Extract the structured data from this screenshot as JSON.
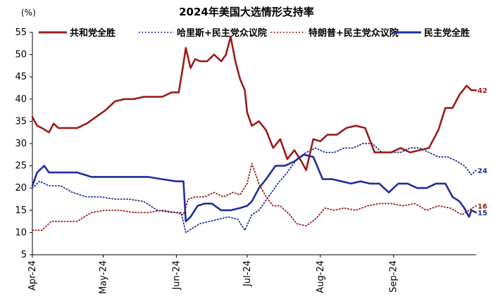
{
  "chart_data": {
    "type": "line",
    "title": "2024年美国大选情形支持率",
    "unit_label": "(%)",
    "ylim": [
      5,
      55
    ],
    "y_ticks": [
      5,
      10,
      15,
      20,
      25,
      30,
      35,
      40,
      45,
      50,
      55
    ],
    "x_ticks": [
      "Apr-24",
      "May-24",
      "Jun-24",
      "Jul-24",
      "Aug-24",
      "Sep-24"
    ],
    "grid": false,
    "legend_position": "top",
    "colors": {
      "republican": "#9b1b1b",
      "harris": "#1f2f9c",
      "trump": "#9b1b1b",
      "democrat": "#1f2f9c"
    },
    "series": [
      {
        "name": "共和党全胜",
        "style": "solid",
        "color": "#9b1b1b",
        "end_label": "42",
        "x": [
          "2024-04-01",
          "2024-04-03",
          "2024-04-05",
          "2024-04-08",
          "2024-04-10",
          "2024-04-12",
          "2024-04-16",
          "2024-04-20",
          "2024-04-24",
          "2024-04-28",
          "2024-05-02",
          "2024-05-06",
          "2024-05-10",
          "2024-05-14",
          "2024-05-18",
          "2024-05-22",
          "2024-05-26",
          "2024-05-30",
          "2024-06-02",
          "2024-06-04",
          "2024-06-05",
          "2024-06-07",
          "2024-06-09",
          "2024-06-11",
          "2024-06-14",
          "2024-06-17",
          "2024-06-20",
          "2024-06-22",
          "2024-06-24",
          "2024-06-26",
          "2024-06-28",
          "2024-06-30",
          "2024-07-01",
          "2024-07-03",
          "2024-07-06",
          "2024-07-09",
          "2024-07-12",
          "2024-07-15",
          "2024-07-18",
          "2024-07-21",
          "2024-07-24",
          "2024-07-26",
          "2024-07-29",
          "2024-08-01",
          "2024-08-04",
          "2024-08-08",
          "2024-08-12",
          "2024-08-16",
          "2024-08-20",
          "2024-08-24",
          "2024-08-28",
          "2024-08-31",
          "2024-09-04",
          "2024-09-08",
          "2024-09-12",
          "2024-09-16",
          "2024-09-20",
          "2024-09-23",
          "2024-09-26",
          "2024-09-29",
          "2024-10-02",
          "2024-10-04",
          "2024-10-06"
        ],
        "y": [
          36,
          34,
          33.5,
          32.5,
          34.5,
          33.5,
          33.5,
          33.5,
          34.5,
          36,
          37.5,
          39.5,
          40,
          40,
          40.5,
          40.5,
          40.5,
          41.5,
          41.5,
          48,
          51.5,
          47,
          49,
          48.5,
          48.5,
          50,
          48.5,
          50,
          54,
          48.5,
          44.5,
          42,
          37,
          34,
          35,
          33,
          29,
          31,
          26.5,
          28.5,
          26,
          24,
          31,
          30.5,
          32,
          32,
          33.5,
          34,
          33.5,
          28,
          28,
          28,
          29,
          28,
          28.5,
          29,
          33,
          38,
          38,
          41,
          43,
          42,
          42
        ]
      },
      {
        "name": "哈里斯+民主党众议院",
        "style": "dotted",
        "color": "#1f2f9c",
        "end_label": "24",
        "x": [
          "2024-04-01",
          "2024-04-04",
          "2024-04-08",
          "2024-04-13",
          "2024-04-18",
          "2024-04-24",
          "2024-04-30",
          "2024-05-06",
          "2024-05-12",
          "2024-05-18",
          "2024-05-24",
          "2024-05-30",
          "2024-06-03",
          "2024-06-05",
          "2024-06-08",
          "2024-06-11",
          "2024-06-15",
          "2024-06-19",
          "2024-06-23",
          "2024-06-27",
          "2024-06-30",
          "2024-07-03",
          "2024-07-06",
          "2024-07-10",
          "2024-07-14",
          "2024-07-18",
          "2024-07-22",
          "2024-07-26",
          "2024-07-30",
          "2024-08-03",
          "2024-08-07",
          "2024-08-11",
          "2024-08-15",
          "2024-08-19",
          "2024-08-23",
          "2024-08-27",
          "2024-08-31",
          "2024-09-04",
          "2024-09-08",
          "2024-09-12",
          "2024-09-16",
          "2024-09-20",
          "2024-09-24",
          "2024-09-28",
          "2024-10-01",
          "2024-10-04",
          "2024-10-06"
        ],
        "y": [
          20,
          21.5,
          20.5,
          20.5,
          19,
          18,
          18,
          17.5,
          17.5,
          17,
          15,
          14.5,
          14.5,
          10,
          11,
          12,
          12.5,
          13,
          13.5,
          13,
          10.5,
          14,
          15,
          18,
          21,
          23.5,
          26.5,
          28,
          29,
          28,
          28,
          29,
          29,
          30,
          30,
          28,
          28,
          28,
          29,
          29,
          28,
          27,
          27,
          26,
          25,
          23,
          24
        ]
      },
      {
        "name": "特朗普+民主党众议院",
        "style": "dotted",
        "color": "#9b1b1b",
        "end_label": "16",
        "x": [
          "2024-04-01",
          "2024-04-05",
          "2024-04-09",
          "2024-04-14",
          "2024-04-20",
          "2024-04-26",
          "2024-05-02",
          "2024-05-08",
          "2024-05-14",
          "2024-05-20",
          "2024-05-26",
          "2024-06-01",
          "2024-06-04",
          "2024-06-06",
          "2024-06-09",
          "2024-06-13",
          "2024-06-17",
          "2024-06-21",
          "2024-06-25",
          "2024-06-28",
          "2024-07-01",
          "2024-07-03",
          "2024-07-06",
          "2024-07-09",
          "2024-07-12",
          "2024-07-15",
          "2024-07-19",
          "2024-07-22",
          "2024-07-26",
          "2024-07-30",
          "2024-08-03",
          "2024-08-07",
          "2024-08-11",
          "2024-08-16",
          "2024-08-21",
          "2024-08-26",
          "2024-08-31",
          "2024-09-05",
          "2024-09-10",
          "2024-09-15",
          "2024-09-20",
          "2024-09-25",
          "2024-09-30",
          "2024-10-03",
          "2024-10-06"
        ],
        "y": [
          10.5,
          10.5,
          12.5,
          12.5,
          12.5,
          14.5,
          15,
          15,
          14.5,
          14.5,
          15,
          14.5,
          14,
          17.5,
          18,
          18,
          19,
          18,
          19,
          18.5,
          21,
          25.5,
          21,
          18,
          16,
          16,
          14,
          12,
          11.5,
          13,
          15.5,
          15,
          15.5,
          15,
          16,
          16.5,
          16.5,
          16,
          16.5,
          15,
          16,
          15.5,
          14,
          15,
          16
        ]
      },
      {
        "name": "民主党全胜",
        "style": "solid",
        "color": "#1f2f9c",
        "end_label": "15",
        "x": [
          "2024-04-01",
          "2024-04-03",
          "2024-04-06",
          "2024-04-08",
          "2024-04-10",
          "2024-04-14",
          "2024-04-20",
          "2024-04-26",
          "2024-05-02",
          "2024-05-08",
          "2024-05-14",
          "2024-05-20",
          "2024-05-26",
          "2024-06-01",
          "2024-06-04",
          "2024-06-05",
          "2024-06-07",
          "2024-06-10",
          "2024-06-13",
          "2024-06-16",
          "2024-06-20",
          "2024-06-24",
          "2024-06-28",
          "2024-07-01",
          "2024-07-03",
          "2024-07-06",
          "2024-07-09",
          "2024-07-13",
          "2024-07-17",
          "2024-07-21",
          "2024-07-25",
          "2024-07-29",
          "2024-08-02",
          "2024-08-06",
          "2024-08-10",
          "2024-08-14",
          "2024-08-18",
          "2024-08-22",
          "2024-08-26",
          "2024-08-30",
          "2024-09-03",
          "2024-09-07",
          "2024-09-11",
          "2024-09-15",
          "2024-09-19",
          "2024-09-23",
          "2024-09-26",
          "2024-09-29",
          "2024-10-01",
          "2024-10-03",
          "2024-10-04",
          "2024-10-06"
        ],
        "y": [
          20.5,
          23.5,
          25,
          23.5,
          23.5,
          23.5,
          23.5,
          22.5,
          22.5,
          22.5,
          22.5,
          22.5,
          22,
          21.5,
          21.5,
          12.5,
          13.5,
          16,
          16.5,
          16.5,
          15,
          15,
          15.5,
          16,
          17,
          20,
          22,
          25,
          25,
          26,
          27.5,
          27,
          22,
          22,
          21.5,
          21,
          21.5,
          21,
          21,
          19,
          21,
          21,
          20,
          20,
          21,
          21,
          18,
          17,
          15.5,
          13.5,
          15,
          14.5
        ]
      }
    ]
  }
}
